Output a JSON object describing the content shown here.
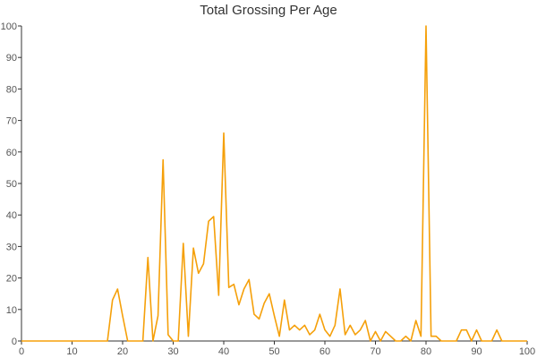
{
  "chart_data": {
    "type": "line",
    "title": "Total Grossing Per Age",
    "xlabel": "",
    "ylabel": "",
    "xlim": [
      0,
      100
    ],
    "ylim": [
      0,
      100
    ],
    "x_ticks": [
      0,
      10,
      20,
      30,
      40,
      50,
      60,
      70,
      80,
      90,
      100
    ],
    "y_ticks": [
      0,
      10,
      20,
      30,
      40,
      50,
      60,
      70,
      80,
      90,
      100
    ],
    "grid": false,
    "legend": "none",
    "line_color": "#f5a00a",
    "series": [
      {
        "x": [
          0,
          17,
          18,
          19,
          20,
          21,
          22,
          23,
          24,
          25,
          26,
          27,
          28,
          29,
          30,
          31,
          32,
          33,
          34,
          35,
          36,
          37,
          38,
          39,
          40,
          41,
          42,
          43,
          44,
          45,
          46,
          47,
          48,
          49,
          50,
          51,
          52,
          53,
          54,
          55,
          56,
          57,
          58,
          59,
          60,
          61,
          62,
          63,
          64,
          65,
          66,
          67,
          68,
          69,
          70,
          71,
          72,
          73,
          74,
          75,
          76,
          77,
          78,
          79,
          80,
          81,
          82,
          83,
          84,
          85,
          86,
          87,
          88,
          89,
          90,
          91,
          92,
          93,
          94,
          95,
          96,
          97,
          98,
          99,
          100
        ],
        "values": [
          0,
          0,
          13,
          16.5,
          8,
          0,
          0,
          0,
          0,
          26.5,
          0,
          8,
          57.5,
          2,
          0,
          0,
          31,
          1.5,
          29.5,
          21.5,
          24.5,
          38,
          39.5,
          14.5,
          66,
          17,
          18,
          11.5,
          16.5,
          19.5,
          8.5,
          7,
          12,
          15,
          8,
          1.5,
          13,
          3.5,
          5,
          3.5,
          5,
          2,
          3.5,
          8.5,
          3.5,
          1.5,
          5,
          16.5,
          2,
          5,
          2,
          3.5,
          6.5,
          0,
          3,
          0,
          3,
          1.5,
          0,
          0,
          1.5,
          0,
          6.5,
          1.5,
          100,
          1.5,
          1.5,
          0,
          0,
          0,
          0,
          3.5,
          3.5,
          0,
          3.5,
          0,
          0,
          0,
          3.5,
          0,
          0,
          0,
          0,
          0,
          0
        ]
      }
    ]
  }
}
